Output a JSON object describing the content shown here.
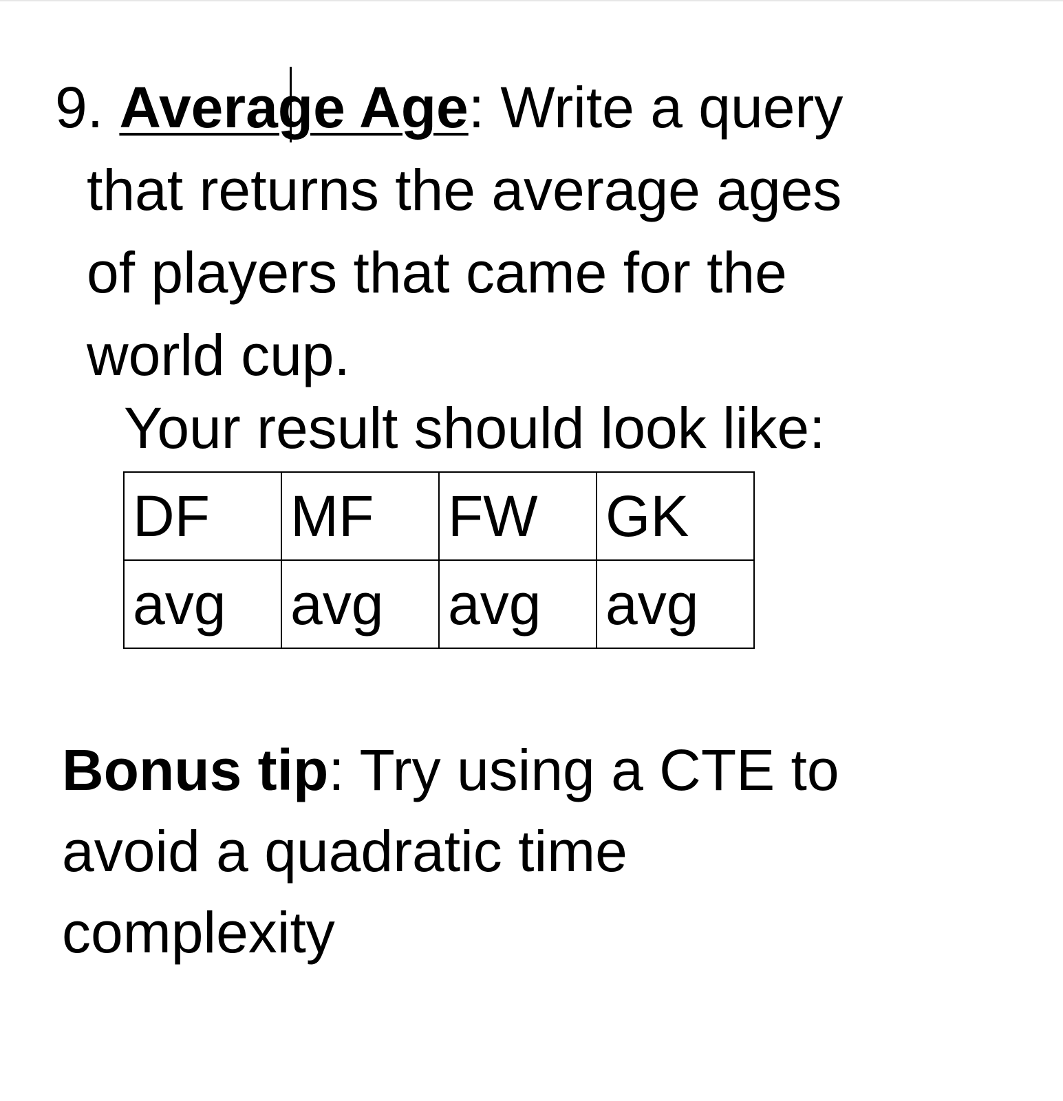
{
  "question": {
    "number": "9.",
    "title": "Average Age",
    "colon": ":",
    "line1_rest": "Write a query",
    "line2": "that returns the average ages",
    "line3": "of players that came for the",
    "line4": "world cup."
  },
  "result": {
    "label": "Your result should look like:",
    "headers": [
      "DF",
      "MF",
      "FW",
      "GK"
    ],
    "values": [
      "avg",
      "avg",
      "avg",
      "avg"
    ]
  },
  "bonus": {
    "title": "Bonus tip",
    "colon": ":",
    "line1_rest": "Try using a CTE to",
    "line2": "avoid a quadratic time",
    "line3": "complexity"
  }
}
